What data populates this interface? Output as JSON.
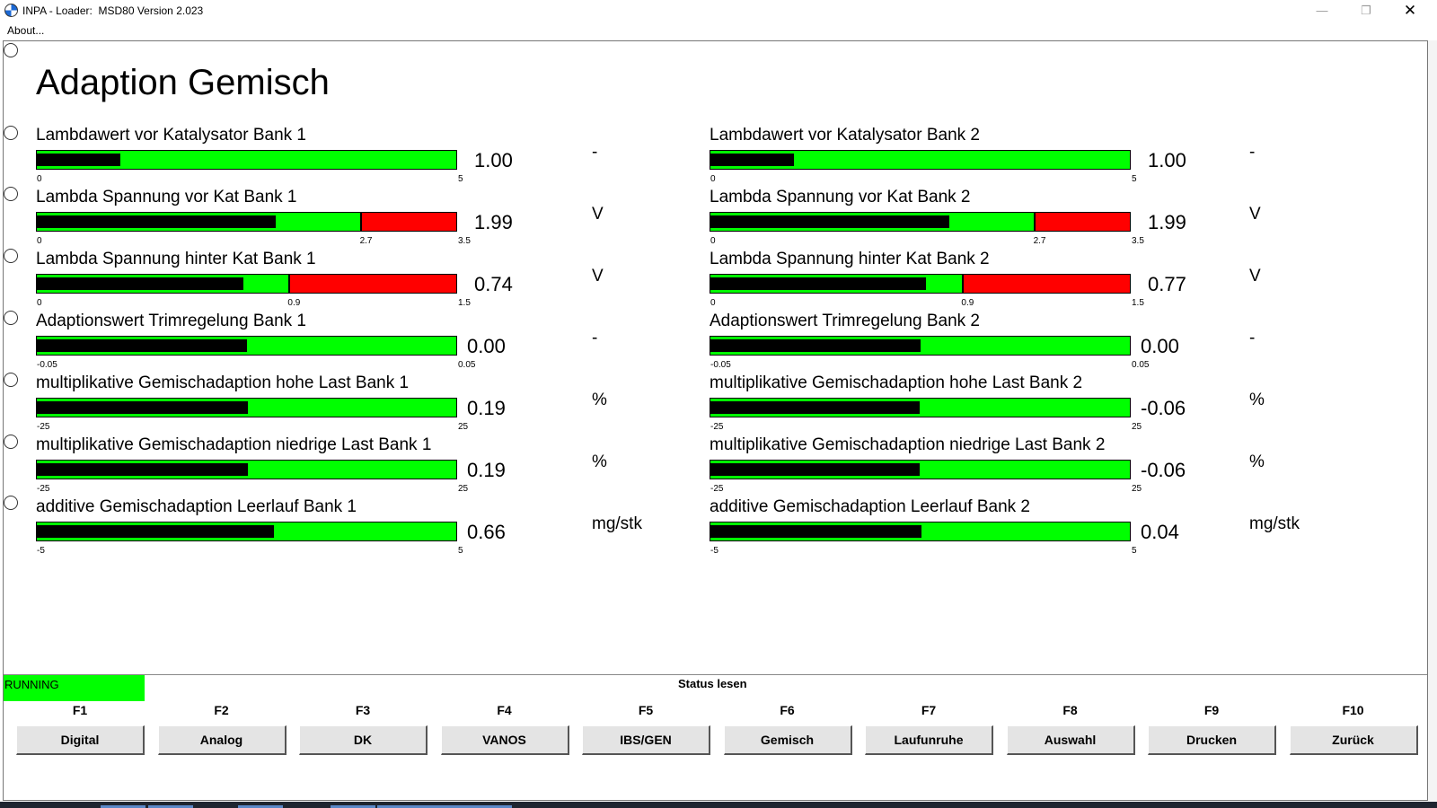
{
  "window": {
    "title": "INPA - Loader:  MSD80 Version 2.023",
    "minimize": "—",
    "maximize": "❐",
    "close": "✕"
  },
  "menu": {
    "about": "About..."
  },
  "page": {
    "title": "Adaption Gemisch"
  },
  "colors": {
    "bar_ok": "#00ff00",
    "bar_fill": "#000000",
    "bar_limit": "#ff0000",
    "running": "#00ff00"
  },
  "left": [
    {
      "label": "Lambdawert vor Katalysator Bank 1",
      "value": "1.00",
      "unit": "-",
      "min": "0",
      "max": "5",
      "mid": "",
      "fill_fraction": 0.2,
      "red_from_fraction": null
    },
    {
      "label": "Lambda Spannung vor Kat Bank 1",
      "value": "1.99",
      "unit": "V",
      "min": "0",
      "max": "3.5",
      "mid": "2.7",
      "fill_fraction": 0.569,
      "red_from_fraction": 0.771
    },
    {
      "label": "Lambda Spannung hinter Kat Bank 1",
      "value": "0.74",
      "unit": "V",
      "min": "0",
      "max": "1.5",
      "mid": "0.9",
      "fill_fraction": 0.493,
      "red_from_fraction": 0.6
    },
    {
      "label": "Adaptionswert Trimregelung Bank 1",
      "value": "0.00",
      "unit": "-",
      "min": "-0.05",
      "max": "0.05",
      "mid": "",
      "fill_fraction": 0.5,
      "red_from_fraction": null
    },
    {
      "label": "multiplikative Gemischadaption hohe Last Bank 1",
      "value": "0.19",
      "unit": "%",
      "min": "-25",
      "max": "25",
      "mid": "",
      "fill_fraction": 0.504,
      "red_from_fraction": null
    },
    {
      "label": "multiplikative Gemischadaption niedrige Last Bank 1",
      "value": "0.19",
      "unit": "%",
      "min": "-25",
      "max": "25",
      "mid": "",
      "fill_fraction": 0.504,
      "red_from_fraction": null
    },
    {
      "label": "additive Gemischadaption Leerlauf Bank 1",
      "value": "0.66",
      "unit": "mg/stk",
      "min": "-5",
      "max": "5",
      "mid": "",
      "fill_fraction": 0.566,
      "red_from_fraction": null
    }
  ],
  "right": [
    {
      "label": "Lambdawert vor Katalysator Bank 2",
      "value": "1.00",
      "unit": "-",
      "min": "0",
      "max": "5",
      "mid": "",
      "fill_fraction": 0.2,
      "red_from_fraction": null
    },
    {
      "label": "Lambda Spannung vor Kat Bank 2",
      "value": "1.99",
      "unit": "V",
      "min": "0",
      "max": "3.5",
      "mid": "2.7",
      "fill_fraction": 0.569,
      "red_from_fraction": 0.771
    },
    {
      "label": "Lambda Spannung hinter Kat Bank 2",
      "value": "0.77",
      "unit": "V",
      "min": "0",
      "max": "1.5",
      "mid": "0.9",
      "fill_fraction": 0.513,
      "red_from_fraction": 0.6
    },
    {
      "label": "Adaptionswert Trimregelung Bank 2",
      "value": "0.00",
      "unit": "-",
      "min": "-0.05",
      "max": "0.05",
      "mid": "",
      "fill_fraction": 0.5,
      "red_from_fraction": null
    },
    {
      "label": "multiplikative Gemischadaption hohe Last Bank 2",
      "value": "-0.06",
      "unit": "%",
      "min": "-25",
      "max": "25",
      "mid": "",
      "fill_fraction": 0.499,
      "red_from_fraction": null
    },
    {
      "label": "multiplikative Gemischadaption niedrige Last Bank 2",
      "value": "-0.06",
      "unit": "%",
      "min": "-25",
      "max": "25",
      "mid": "",
      "fill_fraction": 0.499,
      "red_from_fraction": null
    },
    {
      "label": "additive Gemischadaption Leerlauf Bank 2",
      "value": "0.04",
      "unit": "mg/stk",
      "min": "-5",
      "max": "5",
      "mid": "",
      "fill_fraction": 0.504,
      "red_from_fraction": null
    }
  ],
  "status": {
    "running": "RUNNING",
    "title": "Status lesen"
  },
  "fkeys": [
    {
      "key": "F1",
      "label": "Digital"
    },
    {
      "key": "F2",
      "label": "Analog"
    },
    {
      "key": "F3",
      "label": "DK"
    },
    {
      "key": "F4",
      "label": "VANOS"
    },
    {
      "key": "F5",
      "label": "IBS/GEN"
    },
    {
      "key": "F6",
      "label": "Gemisch"
    },
    {
      "key": "F7",
      "label": "Laufunruhe"
    },
    {
      "key": "F8",
      "label": "Auswahl"
    },
    {
      "key": "F9",
      "label": "Drucken"
    },
    {
      "key": "F10",
      "label": "Zurück"
    }
  ]
}
